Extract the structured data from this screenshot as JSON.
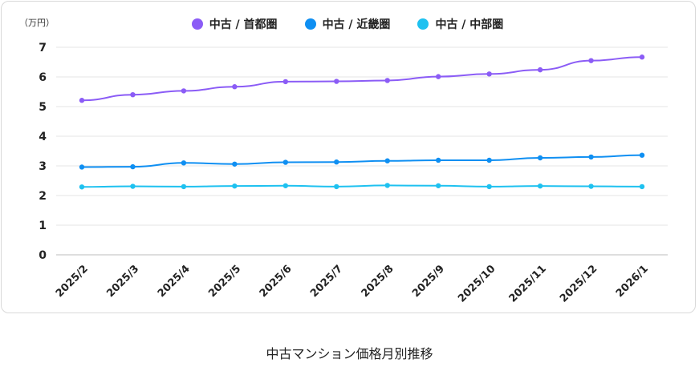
{
  "chart_data": {
    "type": "line",
    "unit_label": "（万円）",
    "categories": [
      "2025/2",
      "2025/3",
      "2025/4",
      "2025/5",
      "2025/6",
      "2025/7",
      "2025/8",
      "2025/9",
      "2025/10",
      "2025/11",
      "2025/12",
      "2026/1"
    ],
    "ylim": [
      0,
      7
    ],
    "yticks": [
      0,
      1,
      2,
      3,
      4,
      5,
      6,
      7
    ],
    "grid": true,
    "legend_position": "top-center",
    "series": [
      {
        "name": "中古 / 首都圏",
        "color": "#8b5cf6",
        "values": [
          5.21,
          5.4,
          5.53,
          5.67,
          5.84,
          5.85,
          5.88,
          6.01,
          6.1,
          6.24,
          6.55,
          6.67
        ]
      },
      {
        "name": "中古 / 近畿圏",
        "color": "#0f8ff2",
        "values": [
          2.96,
          2.97,
          3.1,
          3.06,
          3.12,
          3.13,
          3.17,
          3.19,
          3.19,
          3.27,
          3.3,
          3.36
        ]
      },
      {
        "name": "中古 / 中部圏",
        "color": "#1ec1f0",
        "values": [
          2.29,
          2.31,
          2.3,
          2.32,
          2.33,
          2.3,
          2.34,
          2.33,
          2.3,
          2.32,
          2.31,
          2.3
        ]
      }
    ]
  },
  "caption": "中古マンション価格月別推移"
}
